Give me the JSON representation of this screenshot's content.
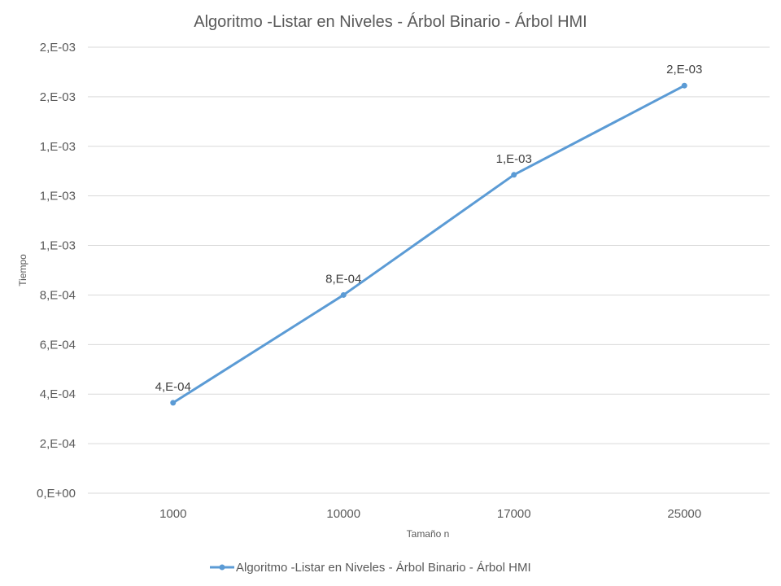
{
  "chart_data": {
    "type": "line",
    "title": "Algoritmo -Listar en Niveles - Árbol Binario - Árbol HMI",
    "xlabel": "Tamaño n",
    "ylabel": "Tiempo",
    "categories": [
      "1000",
      "10000",
      "17000",
      "25000"
    ],
    "series": [
      {
        "name": "Algoritmo -Listar en Niveles - Árbol Binario - Árbol HMI",
        "color": "#5b9bd5",
        "values": [
          0.000365,
          0.0008,
          0.001285,
          0.001645
        ],
        "data_labels": [
          "4,E-04",
          "8,E-04",
          "1,E-03",
          "2,E-03"
        ]
      }
    ],
    "ylim": [
      0,
      0.0018
    ],
    "yticks": [
      0,
      0.0002,
      0.0004,
      0.0006,
      0.0008,
      0.001,
      0.0012,
      0.0014,
      0.0016,
      0.0018
    ],
    "ytick_labels": [
      "0,E+00",
      "2,E-04",
      "4,E-04",
      "6,E-04",
      "8,E-04",
      "1,E-03",
      "1,E-03",
      "1,E-03",
      "2,E-03",
      "2,E-03"
    ],
    "grid": true,
    "legend_position": "bottom"
  }
}
